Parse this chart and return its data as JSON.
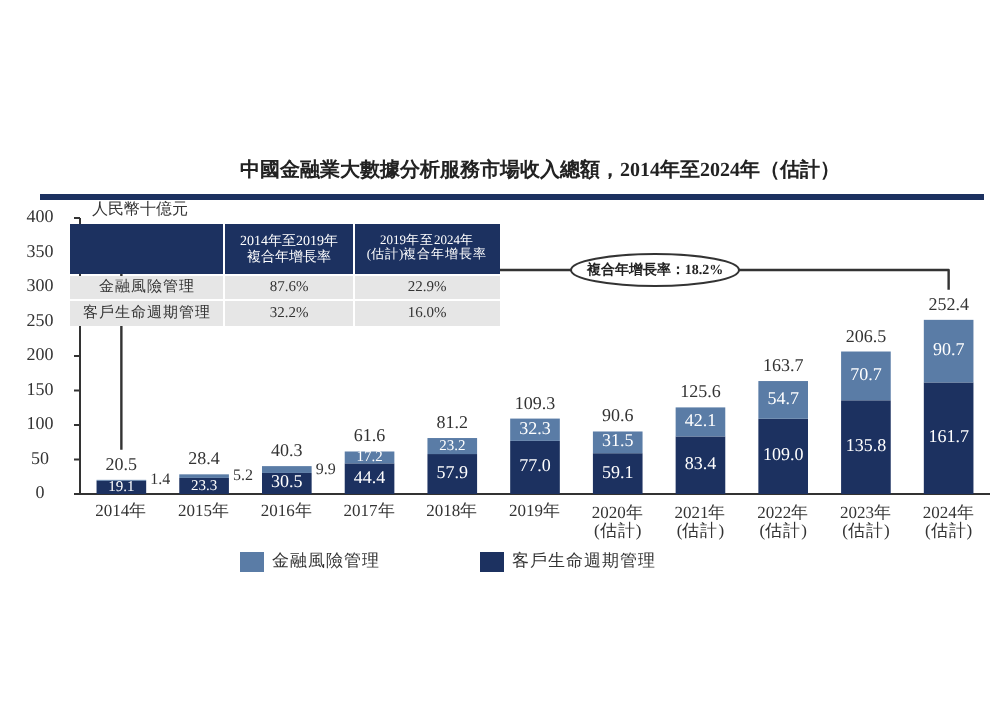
{
  "chart_data": {
    "type": "bar",
    "stacked": true,
    "title": "中國金融業大數據分析服務市場收入總額，2014年至2024年（估計）",
    "ylabel": "人民幣十億元",
    "categories": [
      "2014年",
      "2015年",
      "2016年",
      "2017年",
      "2018年",
      "2019年",
      "2020年\n(估計)",
      "2021年\n(估計)",
      "2022年\n(估計)",
      "2023年\n(估計)",
      "2024年\n(估計)"
    ],
    "series": [
      {
        "name": "客戶生命週期管理",
        "color": "#1c3160",
        "values": [
          19.1,
          23.3,
          30.5,
          44.4,
          57.9,
          77.0,
          59.1,
          83.4,
          109.0,
          135.8,
          161.7
        ],
        "value_labels": [
          "19.1",
          "23.3",
          "30.5",
          "44.4",
          "57.9",
          "77.0",
          "59.1",
          "83.4",
          "109.0",
          "135.8",
          "161.7"
        ]
      },
      {
        "name": "金融風險管理",
        "color": "#5a7ca6",
        "values": [
          1.4,
          5.2,
          9.9,
          17.2,
          23.2,
          32.3,
          31.5,
          42.1,
          54.7,
          70.7,
          90.7
        ],
        "value_labels": [
          "1.4",
          "5.2",
          "9.9",
          "17.2",
          "23.2",
          "32.3",
          "31.5",
          "42.1",
          "54.7",
          "70.7",
          "90.7"
        ]
      }
    ],
    "totals": [
      "20.5",
      "28.4",
      "40.3",
      "61.6",
      "81.2",
      "109.3",
      "90.6",
      "125.6",
      "163.7",
      "206.5",
      "252.4"
    ],
    "ylim": [
      0,
      400
    ],
    "yticks": [
      0,
      50,
      100,
      150,
      200,
      250,
      300,
      350,
      400
    ],
    "grid": false,
    "legend": "bottom",
    "annotations": [
      "2014年至2019年複合年增長率",
      "2019年至2024年(估計)複合年增長率",
      "金融風險管理",
      "87.6%",
      "22.9%",
      "客戶生命週期管理",
      "32.2%",
      "16.0%",
      "複合年增長率：18.2%"
    ]
  }
}
